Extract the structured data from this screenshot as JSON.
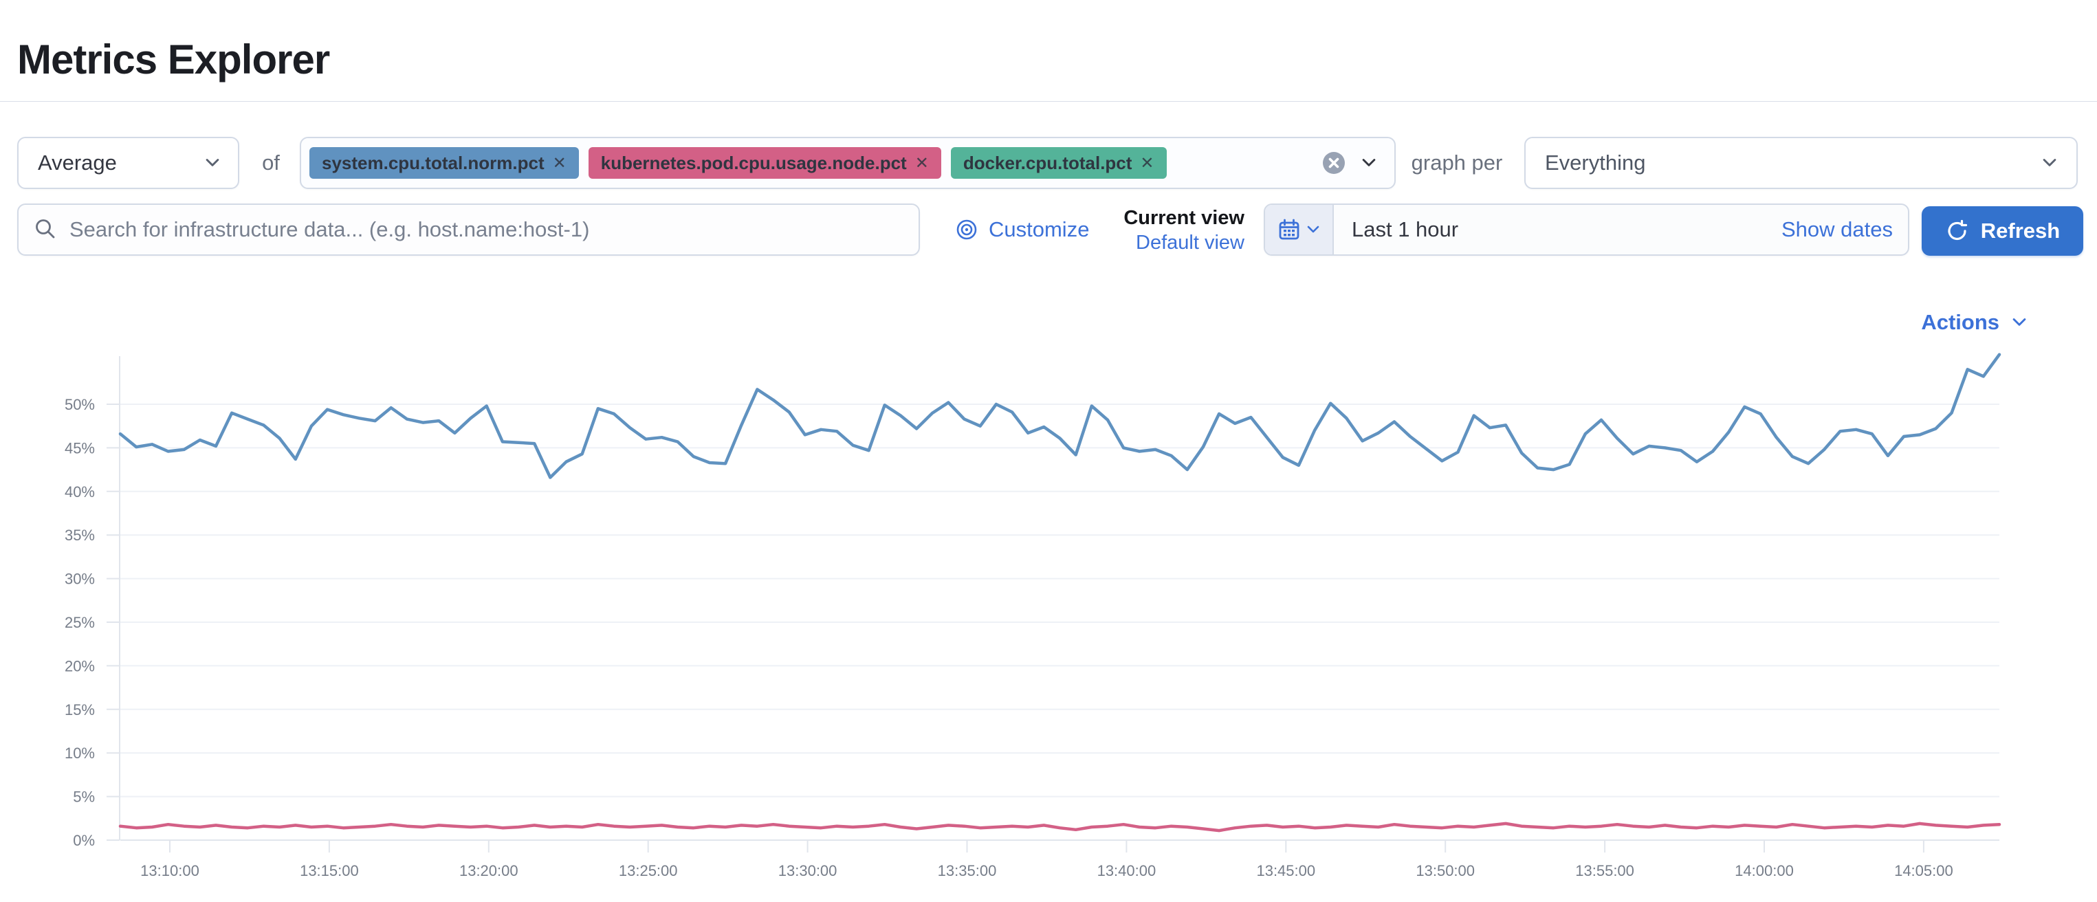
{
  "page": {
    "title": "Metrics Explorer"
  },
  "toolbar": {
    "aggregation": {
      "value": "Average"
    },
    "of_label": "of",
    "metrics": [
      {
        "label": "system.cpu.total.norm.pct",
        "color": "#6092C0"
      },
      {
        "label": "kubernetes.pod.cpu.usage.node.pct",
        "color": "#D36086"
      },
      {
        "label": "docker.cpu.total.pct",
        "color": "#54B399"
      }
    ],
    "remove_glyph": "✕",
    "graph_per_label": "graph per",
    "group_by": {
      "value": "Everything"
    }
  },
  "search": {
    "placeholder": "Search for infrastructure data... (e.g. host.name:host-1)"
  },
  "view_controls": {
    "customize_label": "Customize",
    "current_view_label": "Current view",
    "view_name": "Default view"
  },
  "time_picker": {
    "value": "Last 1 hour",
    "show_dates_label": "Show dates",
    "refresh_label": "Refresh"
  },
  "actions_label": "Actions",
  "colors": {
    "accent_blue": "#3c71d8",
    "button_blue": "#3372cd",
    "series_blue": "#6092C0",
    "series_pink": "#D36086",
    "badge_green": "#54B399",
    "axis_text": "#767d89",
    "gridline": "#eef1f6",
    "axis_line": "#e1e5ec"
  },
  "chart_data": {
    "type": "line",
    "title": "",
    "xlabel": "",
    "ylabel": "",
    "unit": "%",
    "ylim": [
      0,
      55
    ],
    "grid": "horizontal-only",
    "legend": "none",
    "x_start": "13:08:30",
    "x_interval_seconds": 30,
    "x_ticks": [
      "13:10:00",
      "13:15:00",
      "13:20:00",
      "13:25:00",
      "13:30:00",
      "13:35:00",
      "13:40:00",
      "13:45:00",
      "13:50:00",
      "13:55:00",
      "14:00:00",
      "14:05:00"
    ],
    "y_ticks": [
      "0%",
      "5%",
      "10%",
      "15%",
      "20%",
      "25%",
      "30%",
      "35%",
      "40%",
      "45%",
      "50%"
    ],
    "series": [
      {
        "name": "system.cpu.total.norm.pct (avg)",
        "color": "#6092C0",
        "values": [
          46.6,
          45.1,
          45.4,
          44.6,
          44.8,
          45.9,
          45.2,
          49.0,
          48.3,
          47.6,
          46.1,
          43.7,
          47.5,
          49.4,
          48.8,
          48.4,
          48.1,
          49.6,
          48.3,
          47.9,
          48.1,
          46.7,
          48.4,
          49.8,
          45.7,
          45.6,
          45.5,
          41.6,
          43.4,
          44.3,
          49.5,
          48.9,
          47.3,
          46.0,
          46.2,
          45.7,
          44.0,
          43.3,
          43.2,
          47.6,
          51.7,
          50.5,
          49.1,
          46.5,
          47.1,
          46.9,
          45.3,
          44.7,
          49.9,
          48.7,
          47.2,
          49.0,
          50.2,
          48.3,
          47.5,
          50.0,
          49.1,
          46.7,
          47.4,
          46.1,
          44.2,
          49.8,
          48.2,
          45.0,
          44.6,
          44.8,
          44.1,
          42.5,
          45.1,
          48.9,
          47.8,
          48.5,
          46.2,
          43.9,
          43.0,
          47.0,
          50.1,
          48.4,
          45.8,
          46.7,
          48.0,
          46.3,
          44.9,
          43.5,
          44.5,
          48.7,
          47.3,
          47.6,
          44.4,
          42.7,
          42.5,
          43.1,
          46.6,
          48.2,
          46.1,
          44.3,
          45.2,
          45.0,
          44.7,
          43.4,
          44.6,
          46.8,
          49.7,
          48.9,
          46.2,
          44.0,
          43.2,
          44.8,
          46.9,
          47.1,
          46.6,
          44.1,
          46.3,
          46.5,
          47.2,
          49.0,
          54.0,
          53.2,
          55.7
        ]
      },
      {
        "name": "kubernetes.pod.cpu.usage.node.pct (avg)",
        "color": "#D36086",
        "values": [
          1.6,
          1.4,
          1.5,
          1.8,
          1.6,
          1.5,
          1.7,
          1.5,
          1.4,
          1.6,
          1.5,
          1.7,
          1.5,
          1.6,
          1.4,
          1.5,
          1.6,
          1.8,
          1.6,
          1.5,
          1.7,
          1.6,
          1.5,
          1.6,
          1.4,
          1.5,
          1.7,
          1.5,
          1.6,
          1.5,
          1.8,
          1.6,
          1.5,
          1.6,
          1.7,
          1.5,
          1.4,
          1.6,
          1.5,
          1.7,
          1.6,
          1.8,
          1.6,
          1.5,
          1.4,
          1.6,
          1.5,
          1.6,
          1.8,
          1.5,
          1.3,
          1.5,
          1.7,
          1.6,
          1.4,
          1.5,
          1.6,
          1.5,
          1.7,
          1.4,
          1.2,
          1.5,
          1.6,
          1.8,
          1.5,
          1.4,
          1.6,
          1.5,
          1.3,
          1.1,
          1.4,
          1.6,
          1.7,
          1.5,
          1.6,
          1.4,
          1.5,
          1.7,
          1.6,
          1.5,
          1.8,
          1.6,
          1.5,
          1.4,
          1.6,
          1.5,
          1.7,
          1.9,
          1.6,
          1.5,
          1.4,
          1.6,
          1.5,
          1.6,
          1.8,
          1.6,
          1.5,
          1.7,
          1.5,
          1.4,
          1.6,
          1.5,
          1.7,
          1.6,
          1.5,
          1.8,
          1.6,
          1.4,
          1.5,
          1.6,
          1.5,
          1.7,
          1.6,
          1.9,
          1.7,
          1.6,
          1.5,
          1.7,
          1.8
        ]
      }
    ]
  }
}
